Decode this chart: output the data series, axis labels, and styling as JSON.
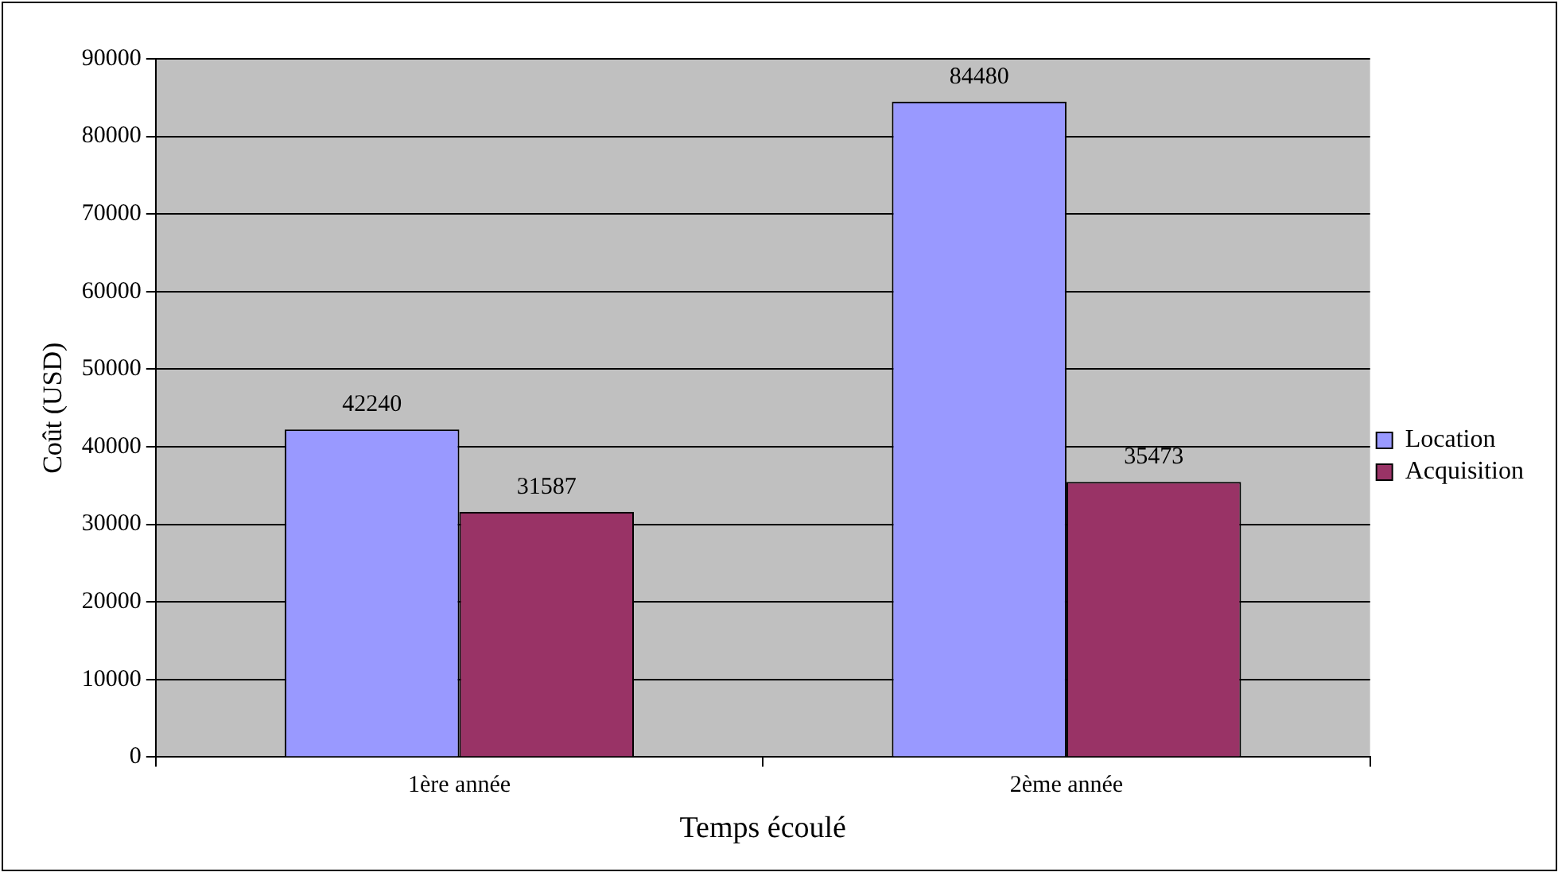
{
  "chart_data": {
    "type": "bar",
    "xlabel": "Temps écoulé",
    "ylabel": "Coût (USD)",
    "categories": [
      "1ère année",
      "2ème année"
    ],
    "series": [
      {
        "name": "Location",
        "color": "#9999ff",
        "values": [
          42240,
          84480
        ]
      },
      {
        "name": "Acquisition",
        "color": "#993366",
        "values": [
          31587,
          35473
        ]
      }
    ],
    "ylim": [
      0,
      90000
    ],
    "yticks": [
      0,
      10000,
      20000,
      30000,
      40000,
      50000,
      60000,
      70000,
      80000,
      90000
    ],
    "grid": "y",
    "legend": "right",
    "data_labels": true
  }
}
